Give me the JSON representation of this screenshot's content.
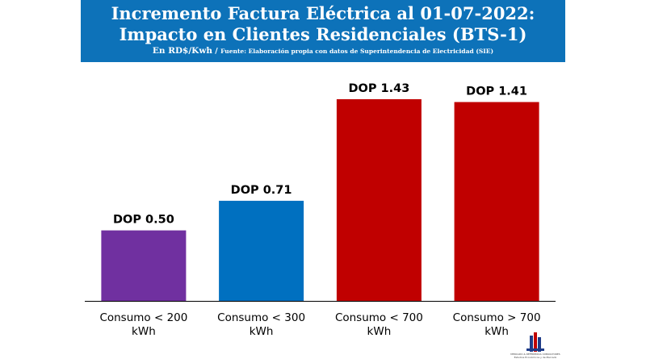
{
  "chart_data": {
    "type": "bar",
    "title": "Incremento Factura Eléctrica al 01-07-2022:",
    "subtitle": "Impacto en Clientes Residenciales (BTS-1)",
    "unit_note": "En RD$/Kwh",
    "source_note": "Fuente: Elaboración propia con datos de Superintendencia de Electricidad (SIE)",
    "categories": [
      [
        "Consumo < 200",
        "kWh"
      ],
      [
        "Consumo < 300",
        "kWh"
      ],
      [
        "Consumo < 700",
        "kWh"
      ],
      [
        "Consumo > 700",
        "kWh"
      ]
    ],
    "values": [
      0.5,
      0.71,
      1.43,
      1.41
    ],
    "data_labels": [
      "DOP 0.50",
      "DOP 0.71",
      "DOP 1.43",
      "DOP 1.41"
    ],
    "bar_colors": [
      "#7030a0",
      "#0070c0",
      "#c00000",
      "#c00000"
    ],
    "ylim": [
      0,
      1.43
    ],
    "grid": false,
    "legend": "none"
  },
  "colors": {
    "banner": "#0d72b9",
    "text": "#000000",
    "axis": "#000000"
  },
  "logo": {
    "icon": "building-logo-icon",
    "text_line1": "MERCADO & REFERENCIA CONSULTORES",
    "text_line2": "Estudios Económicos y de Mercado"
  }
}
